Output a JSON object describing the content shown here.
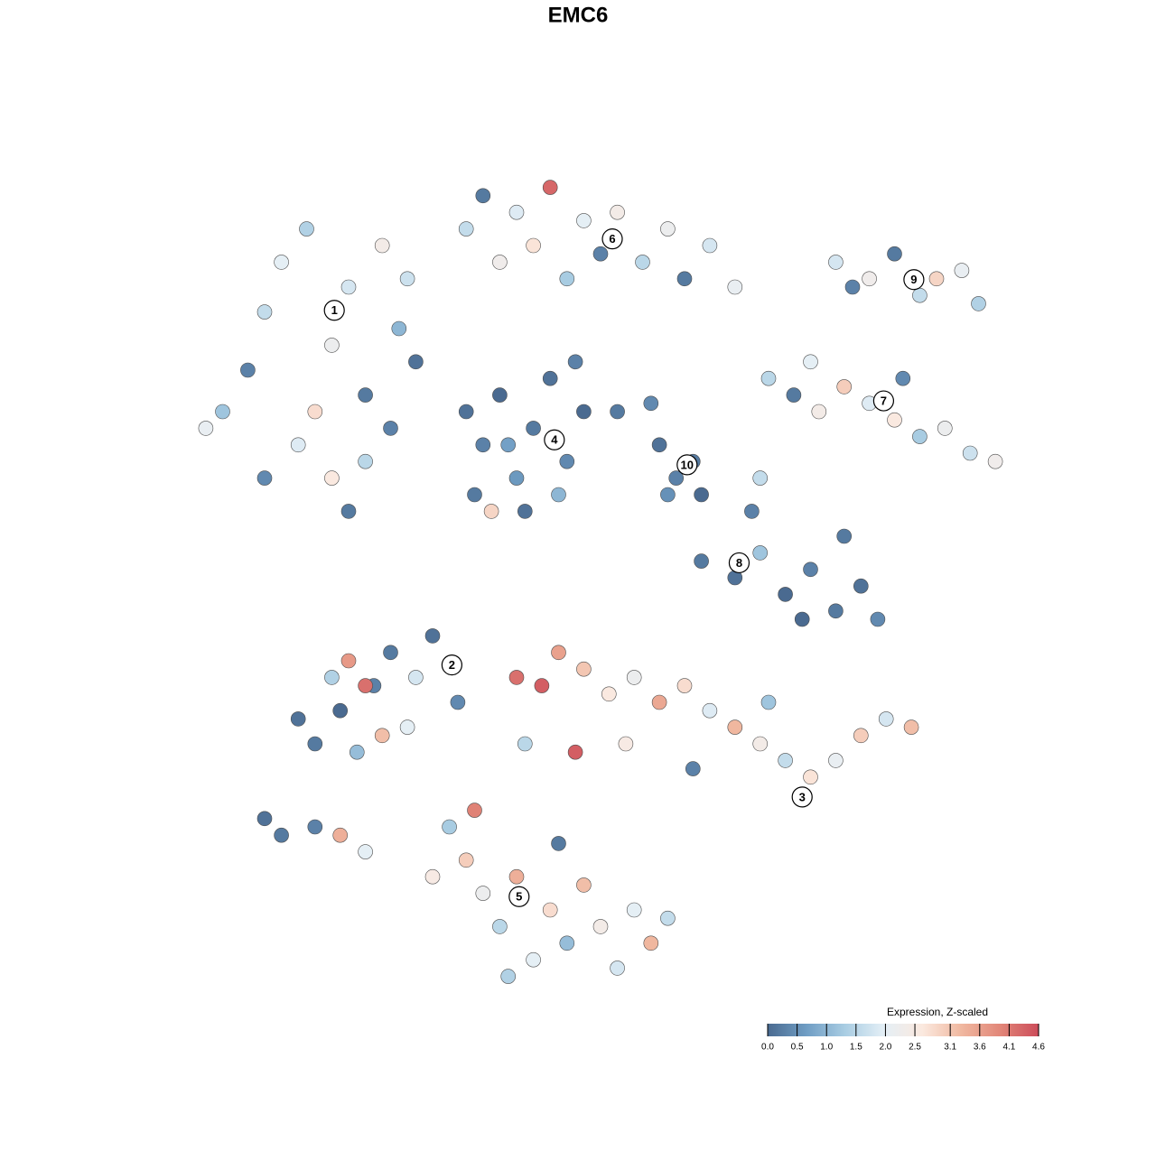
{
  "chart_data": {
    "type": "scatter",
    "title": "EMC6",
    "xlim": [
      0,
      100
    ],
    "ylim": [
      0,
      100
    ],
    "x": [
      5,
      8,
      10,
      12,
      15,
      18,
      20,
      22,
      24,
      26,
      28,
      14,
      18,
      20,
      22,
      10,
      3,
      16,
      25,
      27,
      34,
      36,
      38,
      40,
      42,
      44,
      46,
      48,
      50,
      52,
      55,
      58,
      60,
      63,
      66,
      34,
      36,
      38,
      40,
      42,
      44,
      46,
      48,
      35,
      41,
      45,
      39,
      47,
      37,
      57,
      59,
      61,
      62,
      58,
      52,
      56,
      78,
      82,
      85,
      88,
      90,
      93,
      95,
      80,
      70,
      73,
      76,
      79,
      82,
      85,
      88,
      91,
      94,
      97,
      75,
      86,
      62,
      66,
      69,
      72,
      75,
      78,
      81,
      83,
      74,
      68,
      69,
      79,
      14,
      16,
      19,
      21,
      23,
      18,
      25,
      28,
      30,
      20,
      22,
      24,
      27,
      33,
      10,
      12,
      16,
      19,
      22,
      40,
      43,
      45,
      48,
      51,
      54,
      57,
      60,
      63,
      66,
      69,
      72,
      75,
      78,
      81,
      84,
      87,
      41,
      47,
      53,
      61,
      70,
      32,
      34,
      36,
      38,
      40,
      42,
      44,
      46,
      48,
      50,
      52,
      54,
      56,
      58,
      35,
      45,
      39,
      30
    ],
    "y": [
      70,
      75,
      82,
      88,
      92,
      78,
      85,
      72,
      90,
      80,
      76,
      66,
      62,
      58,
      64,
      62,
      68,
      70,
      68,
      86,
      92,
      96,
      88,
      94,
      90,
      97,
      86,
      93,
      89,
      94,
      88,
      92,
      86,
      90,
      85,
      70,
      66,
      72,
      62,
      68,
      74,
      64,
      70,
      60,
      58,
      60,
      66,
      76,
      58,
      66,
      62,
      64,
      60,
      60,
      70,
      71,
      88,
      86,
      89,
      84,
      86,
      87,
      83,
      85,
      74,
      72,
      70,
      73,
      71,
      69,
      67,
      68,
      65,
      64,
      76,
      74,
      52,
      50,
      53,
      48,
      51,
      46,
      49,
      45,
      45,
      58,
      62,
      55,
      33,
      30,
      34,
      29,
      37,
      38,
      41,
      38,
      43,
      40,
      37,
      31,
      32,
      35,
      21,
      19,
      20,
      19,
      17,
      38,
      37,
      41,
      39,
      36,
      38,
      35,
      37,
      34,
      32,
      30,
      28,
      26,
      28,
      31,
      33,
      32,
      30,
      29,
      30,
      27,
      35,
      20,
      16,
      12,
      8,
      14,
      4,
      10,
      6,
      13,
      8,
      3,
      10,
      6,
      9,
      22,
      18,
      2,
      14
    ],
    "values": [
      1.2,
      0.3,
      1.6,
      2.0,
      1.4,
      2.2,
      1.8,
      0.2,
      2.4,
      1.0,
      0.1,
      1.9,
      2.6,
      0.2,
      1.5,
      0.4,
      2.1,
      2.8,
      0.3,
      1.7,
      1.6,
      0.2,
      2.3,
      1.9,
      2.7,
      4.3,
      1.3,
      2.0,
      0.3,
      2.4,
      1.5,
      2.2,
      0.2,
      1.8,
      2.1,
      0.1,
      0.3,
      0.0,
      0.6,
      0.2,
      0.1,
      0.4,
      0.0,
      0.2,
      0.1,
      1.0,
      0.7,
      0.3,
      2.9,
      0.1,
      0.3,
      0.2,
      0.0,
      0.5,
      0.2,
      0.4,
      1.8,
      2.3,
      0.2,
      1.6,
      2.9,
      2.1,
      1.4,
      0.3,
      1.5,
      0.2,
      2.4,
      3.0,
      1.9,
      2.6,
      1.3,
      2.2,
      1.7,
      2.3,
      2.0,
      0.4,
      0.2,
      0.1,
      1.2,
      0.0,
      0.3,
      0.2,
      0.1,
      0.4,
      0.0,
      0.3,
      1.6,
      0.2,
      0.1,
      0.2,
      0.0,
      1.1,
      0.3,
      1.4,
      0.2,
      1.8,
      0.1,
      3.7,
      4.2,
      3.2,
      2.0,
      0.4,
      0.1,
      0.2,
      0.3,
      3.4,
      2.0,
      4.2,
      4.4,
      3.6,
      3.1,
      2.6,
      2.2,
      3.5,
      2.8,
      1.9,
      3.3,
      2.4,
      1.6,
      2.7,
      2.1,
      3.0,
      1.8,
      3.2,
      1.5,
      4.4,
      2.5,
      0.3,
      1.2,
      1.3,
      3.0,
      2.2,
      1.5,
      3.4,
      2.0,
      2.8,
      1.1,
      3.2,
      2.4,
      1.8,
      2.0,
      3.3,
      1.6,
      4.0,
      0.2,
      1.4,
      2.5
    ],
    "clusters": [
      {
        "label": "1",
        "x": 18.3,
        "y": 82.2
      },
      {
        "label": "2",
        "x": 32.3,
        "y": 39.5
      },
      {
        "label": "3",
        "x": 74,
        "y": 23.6
      },
      {
        "label": "4",
        "x": 44.5,
        "y": 66.6
      },
      {
        "label": "5",
        "x": 40.3,
        "y": 11.6
      },
      {
        "label": "6",
        "x": 51.4,
        "y": 90.8
      },
      {
        "label": "7",
        "x": 83.7,
        "y": 71.3
      },
      {
        "label": "8",
        "x": 66.5,
        "y": 51.8
      },
      {
        "label": "9",
        "x": 87.3,
        "y": 85.9
      },
      {
        "label": "10",
        "x": 60.3,
        "y": 63.6
      }
    ],
    "colorbar": {
      "title": "Expression, Z-scaled",
      "clim": [
        0,
        4.6
      ],
      "colors": [
        "#4a6a90",
        "#6f9dc4",
        "#a9cde3",
        "#e4eff6",
        "#fbe9df",
        "#f0b8a0",
        "#e28779",
        "#cc4c5a"
      ],
      "ticks": [
        {
          "value": 0,
          "label": "0.0"
        },
        {
          "value": 0.5,
          "label": "0.5"
        },
        {
          "value": 1,
          "label": "1.0"
        },
        {
          "value": 1.5,
          "label": "1.5"
        },
        {
          "value": 2,
          "label": "2.0"
        },
        2.5,
        3.1,
        3.6,
        4.1,
        4.6
      ]
    }
  }
}
